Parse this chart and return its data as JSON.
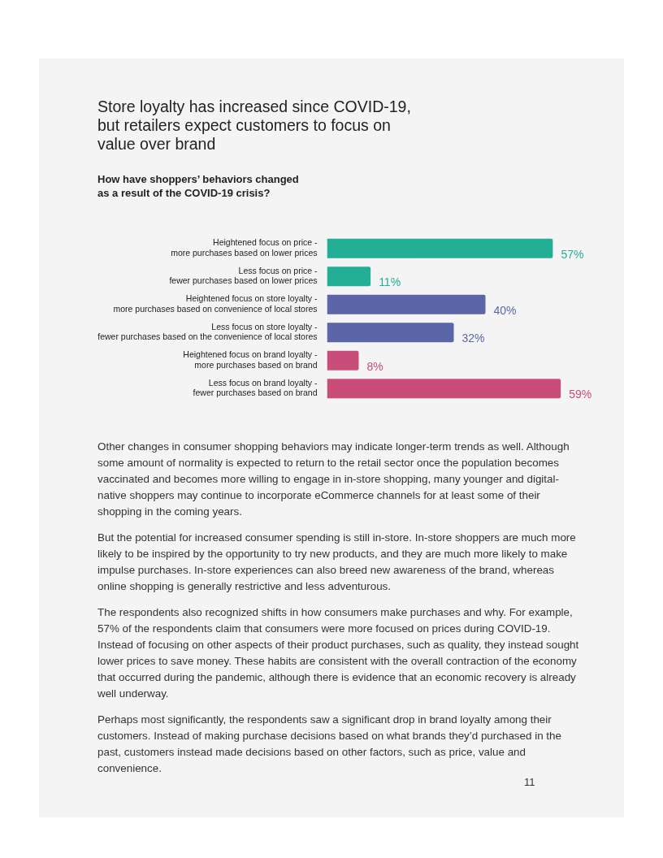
{
  "chart_data": {
    "type": "bar",
    "orientation": "horizontal",
    "title": "Store loyalty has increased since COVID-19,\nbut retailers expect customers to focus on\nvalue over brand",
    "subtitle": "How have shoppers’ behaviors changed\nas a result of the COVID-19 crisis?",
    "categories": [
      "Heightened focus on price -\nmore purchases based on lower prices",
      "Less focus on price -\nfewer purchases based on lower prices",
      "Heightened focus on store loyalty -\nmore purchases based on convenience of local stores",
      "Less focus on store loyalty -\nfewer purchases based on the convenience of local stores",
      "Heightened focus on brand loyalty -\nmore purchases based on brand",
      "Less focus on brand loyalty -\nfewer purchases based on brand"
    ],
    "values": [
      57,
      11,
      40,
      32,
      8,
      59
    ],
    "colors": [
      "#23ae96",
      "#23ae96",
      "#5b66a9",
      "#5b66a9",
      "#c94d79",
      "#c94d79"
    ],
    "value_labels": [
      "57%",
      "11%",
      "40%",
      "32%",
      "8%",
      "59%"
    ],
    "tick_labels": "y",
    "grid": false,
    "legend": false,
    "annotations": [
      "Other changes in consumer shopping behaviors may indicate longer-term trends as well. Although some amount of normality is expected to return to the retail sector once the population becomes vaccinated and becomes more willing to engage in in-store shopping, many younger and digital-native shoppers may continue to incorporate eCommerce channels for at least some of their shopping in the coming years.",
      "But the potential for increased consumer spending is still in-store. In-store shoppers are much more likely to be inspired by the opportunity to try new products, and they are much more likely to make impulse purchases. In-store experiences can also breed new awareness of the brand, whereas online shopping is generally restrictive and less adventurous.",
      "The respondents also recognized shifts in how consumers make purchases and why. For example, 57% of the respondents claim that consumers were more focused on prices during COVID-19. Instead of focusing on other aspects of their product purchases, such as quality, they instead sought lower prices to save money. These habits are consistent with the overall contraction of the economy that occurred during the pandemic, although there is evidence that an economic recovery is already well underway.",
      "Perhaps most significantly, the respondents saw a significant drop in brand loyalty among their customers. Instead of making purchase decisions based on what brands they’d purchased in the past, customers instead made decisions based on other factors, such as price, value and convenience.",
      "11"
    ]
  }
}
